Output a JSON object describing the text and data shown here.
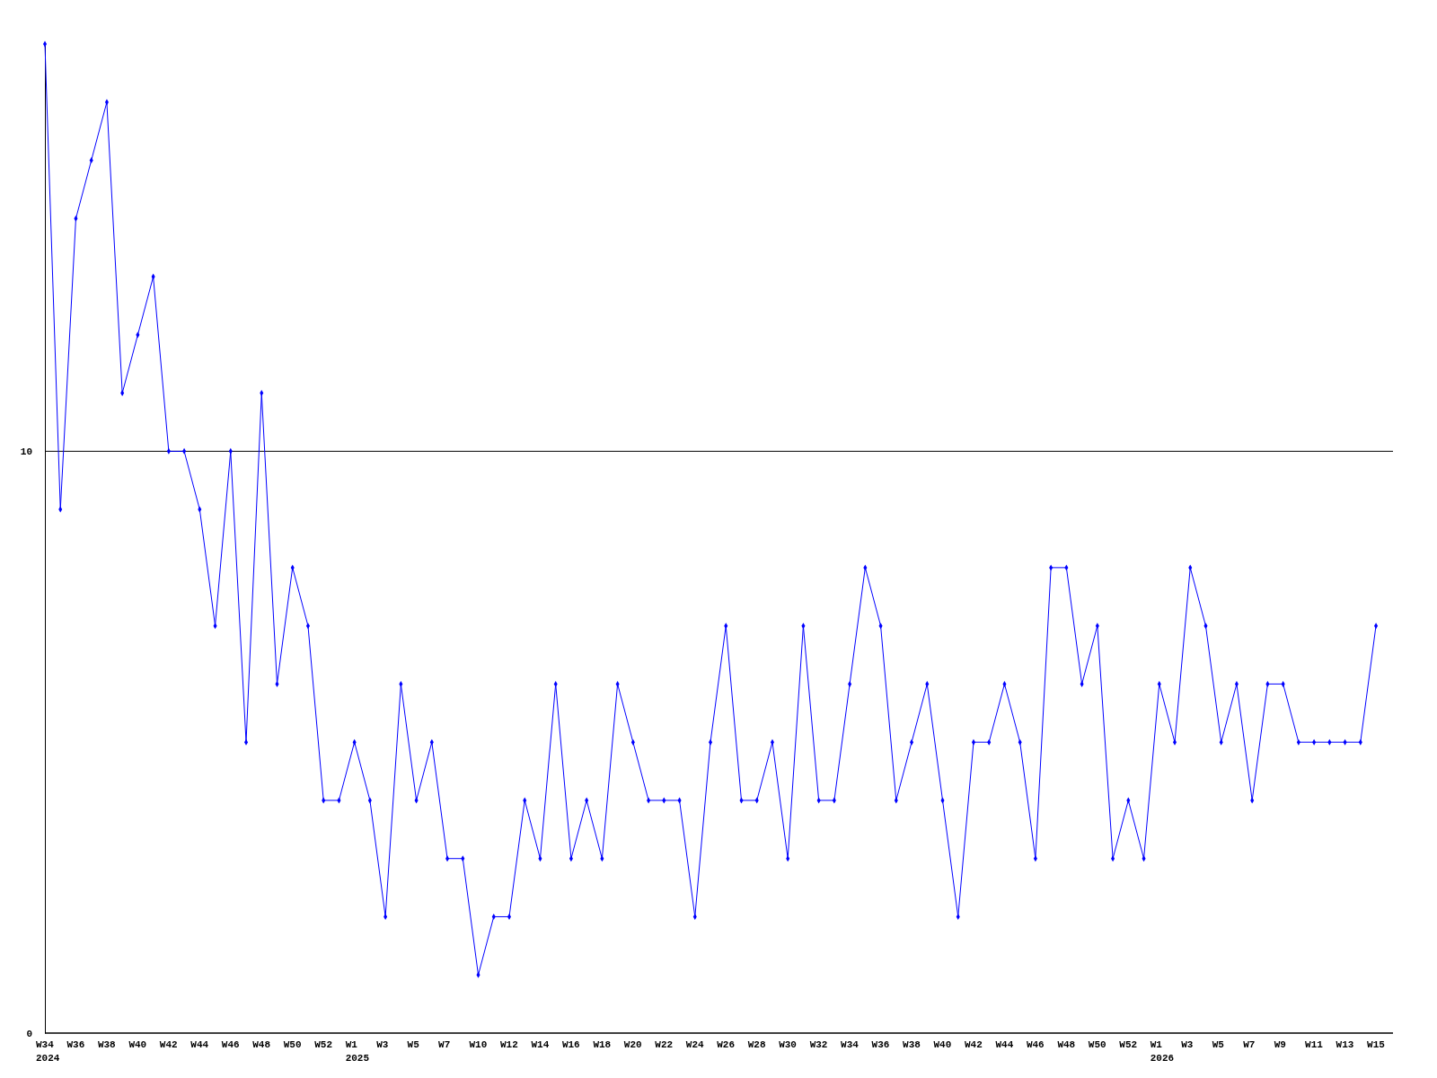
{
  "chart_data": {
    "type": "line",
    "categories": [
      "W34\n2024",
      null,
      "W36",
      null,
      "W38",
      null,
      "W40",
      null,
      "W42",
      null,
      "W44",
      null,
      "W46",
      null,
      "W48",
      null,
      "W50",
      null,
      "W52",
      null,
      "W1\n2025",
      null,
      "W3",
      null,
      "W5",
      null,
      "W7",
      null,
      "W10",
      null,
      "W12",
      null,
      "W14",
      null,
      "W16",
      null,
      "W18",
      null,
      "W20",
      null,
      "W22",
      null,
      "W24",
      null,
      "W26",
      null,
      "W28",
      null,
      "W30",
      null,
      "W32",
      null,
      "W34",
      null,
      "W36",
      null,
      "W38",
      null,
      "W40",
      null,
      "W42",
      null,
      "W44",
      null,
      "W46",
      null,
      "W48",
      null,
      "W50",
      null,
      "W52",
      null,
      "W1\n2026",
      null,
      "W3",
      null,
      "W5",
      null,
      "W7",
      null,
      "W9",
      null,
      "W11",
      null,
      "W13",
      null,
      "W15"
    ],
    "series": [
      {
        "color": "#0000ff",
        "values": [
          17,
          9,
          14,
          15,
          16,
          11,
          12,
          13,
          10,
          10,
          9,
          7,
          10,
          5,
          11,
          6,
          8,
          7,
          4,
          4,
          5,
          4,
          2,
          6,
          4,
          5,
          3,
          3,
          1,
          2,
          2,
          4,
          3,
          6,
          3,
          4,
          3,
          6,
          5,
          4,
          4,
          4,
          2,
          5,
          7,
          4,
          4,
          5,
          3,
          7,
          4,
          4,
          6,
          8,
          7,
          4,
          5,
          6,
          4,
          2,
          5,
          5,
          6,
          5,
          3,
          8,
          8,
          6,
          7,
          3,
          4,
          3,
          6,
          5,
          8,
          7,
          5,
          6,
          4,
          6,
          6,
          5,
          5,
          5,
          5,
          5,
          7
        ]
      }
    ],
    "ylim": [
      0,
      17
    ],
    "yticks": [
      0,
      10
    ],
    "grid": "y",
    "marker": "diamond",
    "line_style": "solid"
  }
}
